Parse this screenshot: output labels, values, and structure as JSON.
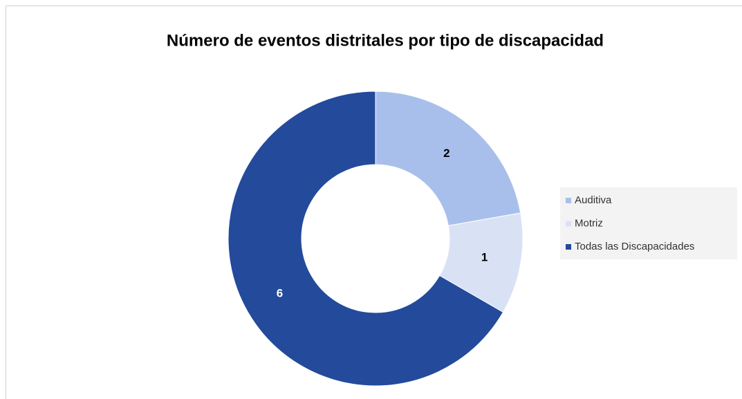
{
  "chart_data": {
    "type": "donut",
    "title": "Número de eventos distritales por tipo de discapacidad",
    "categories": [
      "Auditiva",
      "Motriz",
      "Todas las Discapacidades"
    ],
    "values": [
      2,
      1,
      6
    ],
    "colors": [
      "#a9bfeb",
      "#d9e2f5",
      "#234a9b"
    ],
    "label_colors": [
      "#000000",
      "#000000",
      "#ffffff"
    ],
    "legend": "right"
  }
}
